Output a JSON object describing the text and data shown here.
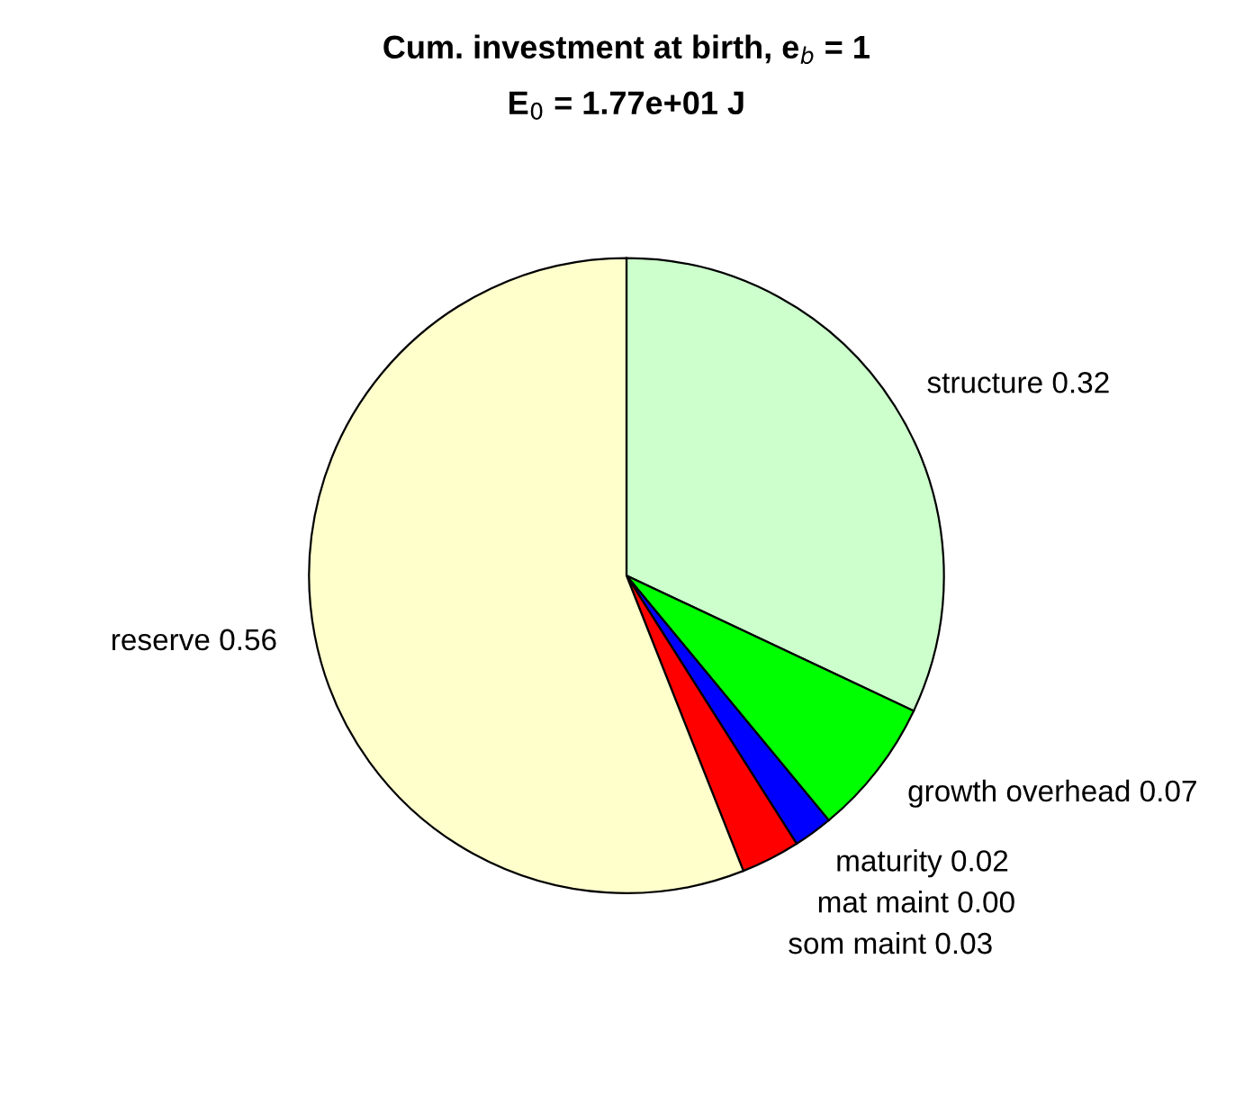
{
  "chart_data": {
    "type": "pie",
    "title": "Cum. investment at birth, e$_{b}$ = 1",
    "subtitle": "E$_{0}$ = 1.77e+01 J",
    "categories": [
      "structure",
      "growth overhead",
      "maturity",
      "mat maint",
      "som maint",
      "reserve"
    ],
    "values": [
      0.32,
      0.07,
      0.02,
      0.0,
      0.03,
      0.56
    ],
    "value_labels": [
      "0.32",
      "0.07",
      "0.02",
      "0.00",
      "0.03",
      "0.56"
    ],
    "colors": [
      "#ccffcc",
      "#00ff00",
      "#0000ff",
      "#000000",
      "#ff0000",
      "#ffffcc"
    ],
    "legend": false
  }
}
